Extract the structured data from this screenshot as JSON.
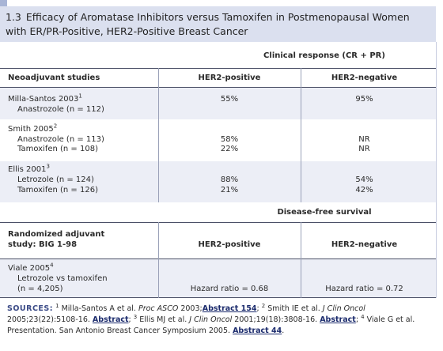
{
  "title": {
    "number": "1.3",
    "line1": "Efficacy of Aromatase Inhibitors versus Tamoxifen in Postmenopausal Women",
    "line2": "with ER/PR-Positive, HER2-Positive Breast Cancer"
  },
  "section1": {
    "group_header": "Clinical response (CR + PR)",
    "col0": "Neoadjuvant studies",
    "col1": "HER2-positive",
    "col2": "HER2-negative",
    "studies": [
      {
        "name": "Milla-Santos 2003",
        "ref": "1",
        "arms": [
          {
            "label": "Anastrozole (n = 112)",
            "pos": "55%",
            "neg": "95%"
          }
        ]
      },
      {
        "name": "Smith 2005",
        "ref": "2",
        "arms": [
          {
            "label": "Anastrozole (n = 113)",
            "pos": "58%",
            "neg": "NR"
          },
          {
            "label": "Tamoxifen (n = 108)",
            "pos": "22%",
            "neg": "NR"
          }
        ]
      },
      {
        "name": "Ellis 2001",
        "ref": "3",
        "arms": [
          {
            "label": "Letrozole (n = 124)",
            "pos": "88%",
            "neg": "54%"
          },
          {
            "label": "Tamoxifen (n = 126)",
            "pos": "21%",
            "neg": "42%"
          }
        ]
      }
    ]
  },
  "section2": {
    "group_header": "Disease-free survival",
    "col0_line1": "Randomized adjuvant",
    "col0_line2": "study: BIG 1-98",
    "col1": "HER2-positive",
    "col2": "HER2-negative",
    "study": {
      "name": "Viale 2005",
      "ref": "4",
      "line2": "Letrozole vs tamoxifen",
      "line3": "(n = 4,205)",
      "pos": "Hazard ratio = 0.68",
      "neg": "Hazard ratio = 0.72"
    }
  },
  "sources": {
    "label": "SOURCES:",
    "s1_ref": "1",
    "s1_text": "Milla-Santos A et al.",
    "s1_journal": "Proc ASCO",
    "s1_year": "2003;",
    "s1_link": "Abstract 154",
    "s1_sep": ";",
    "s2_ref": "2",
    "s2_text": "Smith IE et al.",
    "s2_journal": "J Clin Oncol",
    "s2_detail": "2005;23(22):5108-16.",
    "s2_link": "Abstract",
    "s2_sep": ";",
    "s3_ref": "3",
    "s3_text": "Ellis MJ et al.",
    "s3_journal": "J Clin Oncol",
    "s3_detail": "2001;19(18):3808-16.",
    "s3_link": "Abstract",
    "s3_sep": ";",
    "s4_ref": "4",
    "s4_text": "Viale G et al. Presentation. San Antonio Breast Cancer Symposium 2005.",
    "s4_link": "Abstract 44",
    "s4_end": "."
  },
  "colors": {
    "title_bg": "#dbe0ef",
    "row_alt_bg": "#eceef6",
    "accent": "#a8b5d6",
    "sources_label": "#3a4a86",
    "link": "#1a2a6c"
  }
}
